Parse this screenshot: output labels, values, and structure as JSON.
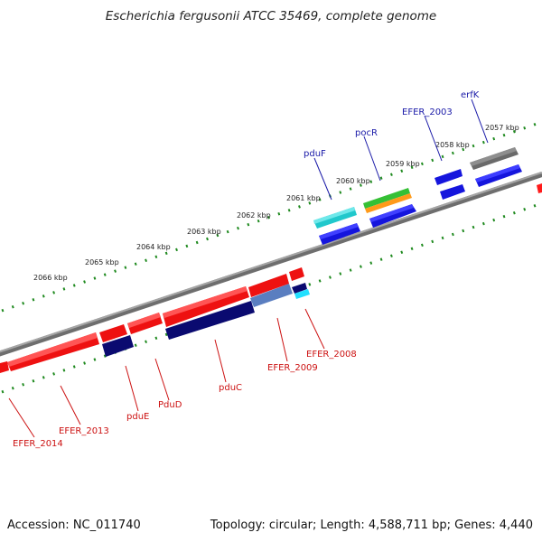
{
  "header": {
    "title": "Escherichia fergusonii ATCC 35469, complete genome"
  },
  "footer": {
    "accession": "Accession: NC_011740",
    "topology": "Topology: circular; Length: 4,588,711 bp; Genes: 4,440"
  },
  "colors": {
    "backbone": "#8a8a8a",
    "tick": "#1f8a1f",
    "forward_label": "#1a1aa8",
    "reverse_label": "#cc1111"
  },
  "scale_labels": [
    "2057 kbp",
    "2058 kbp",
    "2059 kbp",
    "2060 kbp",
    "2061 kbp",
    "2062 kbp",
    "2063 kbp",
    "2064 kbp",
    "2065 kbp",
    "2066 kbp"
  ],
  "forward_genes": [
    {
      "label": "erfK",
      "color": "#666666"
    },
    {
      "label": "EFER_2003",
      "color": "#1515dd"
    },
    {
      "label": "pocR",
      "color": "#35c035"
    },
    {
      "label": "pduF",
      "color": "#20c8cc"
    }
  ],
  "reverse_genes": [
    {
      "label": "EFER_2008",
      "color": "#dd1111"
    },
    {
      "label": "EFER_2009",
      "color": "#5577bb"
    },
    {
      "label": "pduC",
      "color": "#0a0a70"
    },
    {
      "label": "PduD",
      "color": "#dd1111"
    },
    {
      "label": "pduE",
      "color": "#0a0a70"
    },
    {
      "label": "EFER_2013",
      "color": "#dd1111"
    },
    {
      "label": "EFER_2014",
      "color": "#dd1111"
    }
  ]
}
